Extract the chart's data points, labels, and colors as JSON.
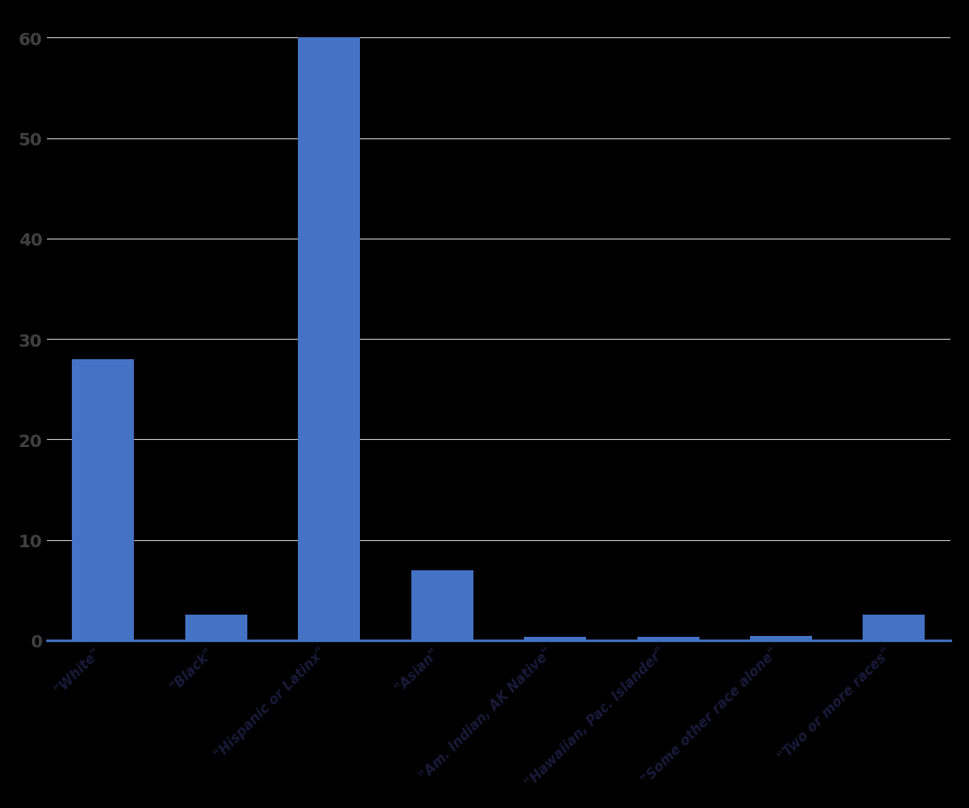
{
  "categories": [
    "\"White\"",
    "\"Black\"",
    "\"Hispanic or Latinx\"",
    "\"Asian\"",
    "\"Am. Indian, AK Native\"",
    "\"Hawaiian, Pac. Islander\"",
    "\"Some other race alone\"",
    "\"Two or more races\""
  ],
  "values": [
    28.0,
    2.5,
    60.0,
    7.0,
    0.3,
    0.35,
    0.4,
    2.5
  ],
  "bar_color": "#4472c4",
  "background_color": "#000000",
  "plot_bg_color": "#000000",
  "grid_color": "#c0c0c0",
  "tick_label_color": "#404040",
  "xlabel_color": "#1a1a3a",
  "bottom_spine_color": "#4472c4",
  "ylim": [
    0,
    62
  ],
  "yticks": [
    0,
    10,
    20,
    30,
    40,
    50,
    60
  ],
  "bar_width": 0.55,
  "xlabel_fontsize": 11,
  "tick_label_fontsize": 14
}
